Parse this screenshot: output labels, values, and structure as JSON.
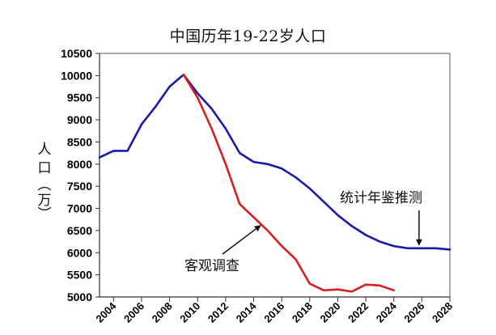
{
  "chart_data": {
    "type": "line",
    "title": "中国历年19-22岁人口",
    "xlabel": "",
    "ylabel": "人口（万）",
    "ylim": [
      5000,
      10500
    ],
    "xlim": [
      2003,
      2028
    ],
    "y_ticks": [
      5000,
      5500,
      6000,
      6500,
      7000,
      7500,
      8000,
      8500,
      9000,
      9500,
      10000,
      10500
    ],
    "x_ticks": [
      2004,
      2006,
      2008,
      2010,
      2012,
      2014,
      2016,
      2018,
      2020,
      2022,
      2024,
      2026,
      2028
    ],
    "grid": true,
    "legend": "none (inline annotations)",
    "series": [
      {
        "name": "统计年鉴推测",
        "color": "#1a1aa6",
        "x": [
          2003,
          2004,
          2005,
          2006,
          2007,
          2008,
          2009,
          2010,
          2011,
          2012,
          2013,
          2014,
          2015,
          2016,
          2017,
          2018,
          2019,
          2020,
          2021,
          2022,
          2023,
          2024,
          2025,
          2026,
          2027,
          2028
        ],
        "values": [
          8150,
          8300,
          8300,
          8900,
          9300,
          9750,
          10020,
          9600,
          9250,
          8800,
          8250,
          8050,
          8000,
          7900,
          7700,
          7450,
          7150,
          6850,
          6600,
          6400,
          6250,
          6150,
          6100,
          6100,
          6100,
          6070
        ]
      },
      {
        "name": "客观调查",
        "color": "#d42020",
        "x": [
          2009,
          2010,
          2011,
          2012,
          2013,
          2014,
          2015,
          2016,
          2017,
          2018,
          2019,
          2020,
          2021,
          2022,
          2023,
          2024
        ],
        "values": [
          10020,
          9500,
          8800,
          8000,
          7100,
          6800,
          6500,
          6150,
          5850,
          5300,
          5150,
          5170,
          5120,
          5280,
          5260,
          5150
        ]
      }
    ],
    "annotations": [
      {
        "text": "统计年鉴推测",
        "arrow_to": [
          2025.8,
          6120
        ]
      },
      {
        "text": "客观调查",
        "arrow_to": [
          2014.6,
          6650
        ]
      }
    ]
  }
}
